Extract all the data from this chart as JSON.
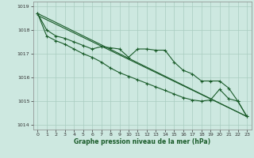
{
  "title": "Graphe pression niveau de la mer (hPa)",
  "bg_color": "#cde8e0",
  "grid_color": "#a8ccbf",
  "line_color": "#1a5c2a",
  "xlim": [
    -0.5,
    23.5
  ],
  "ylim": [
    1013.8,
    1019.2
  ],
  "yticks": [
    1014,
    1015,
    1016,
    1017,
    1018,
    1019
  ],
  "xticks": [
    0,
    1,
    2,
    3,
    4,
    5,
    6,
    7,
    8,
    9,
    10,
    11,
    12,
    13,
    14,
    15,
    16,
    17,
    18,
    19,
    20,
    21,
    22,
    23
  ],
  "trend_line": {
    "x": [
      0,
      23
    ],
    "y": [
      1018.7,
      1014.35
    ]
  },
  "trend_line2": {
    "x": [
      0,
      23
    ],
    "y": [
      1018.62,
      1014.35
    ]
  },
  "series_bumpy_x": [
    0,
    1,
    2,
    3,
    4,
    5,
    6,
    7,
    8,
    9,
    10,
    11,
    12,
    13,
    14,
    15,
    16,
    17,
    18,
    19,
    20,
    21,
    22,
    23
  ],
  "series_bumpy_y": [
    1018.7,
    1018.0,
    1017.75,
    1017.65,
    1017.5,
    1017.35,
    1017.2,
    1017.3,
    1017.25,
    1017.2,
    1016.85,
    1017.2,
    1017.2,
    1017.15,
    1017.15,
    1016.65,
    1016.3,
    1016.15,
    1015.85,
    1015.85,
    1015.85,
    1015.55,
    1015.0,
    1014.35
  ],
  "series_lower_x": [
    0,
    1,
    2,
    3,
    4,
    5,
    6,
    7,
    8,
    9,
    10,
    11,
    12,
    13,
    14,
    15,
    16,
    17,
    18,
    19,
    20,
    21,
    22,
    23
  ],
  "series_lower_y": [
    1018.7,
    1017.75,
    1017.55,
    1017.4,
    1017.2,
    1017.0,
    1016.85,
    1016.65,
    1016.4,
    1016.2,
    1016.05,
    1015.9,
    1015.75,
    1015.6,
    1015.45,
    1015.3,
    1015.15,
    1015.05,
    1015.0,
    1015.05,
    1015.5,
    1015.1,
    1015.0,
    1014.35
  ],
  "title_fontsize": 5.5,
  "tick_fontsize": 4.5,
  "linewidth": 0.8,
  "markersize": 2.5
}
